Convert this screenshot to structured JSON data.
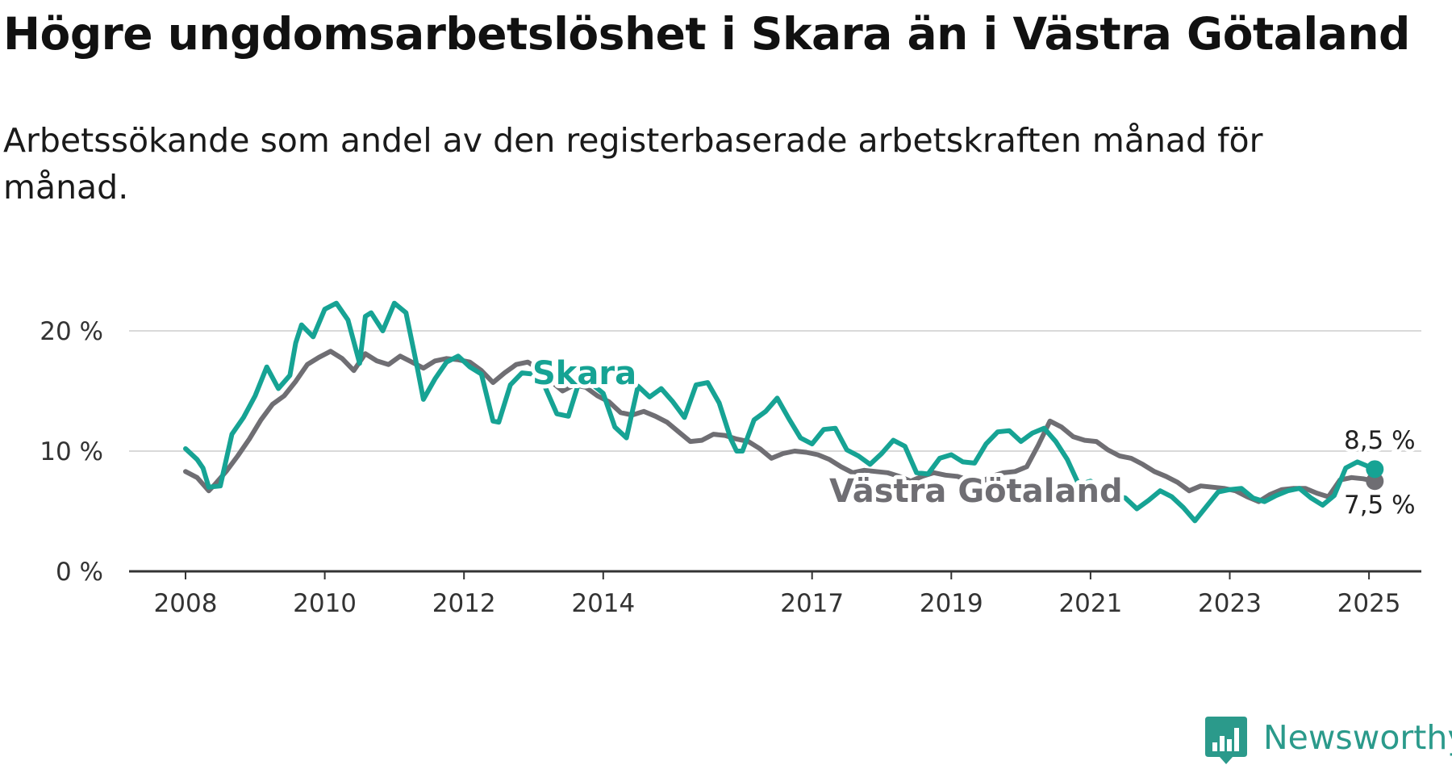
{
  "title": "Högre ungdomsarbetslöshet i Skara än i Västra Götaland",
  "subtitle": "Arbetssökande som andel av den registerbaserade arbetskraften månad för månad.",
  "brand": {
    "name": "Newsworthy",
    "color": "#2b9a8b",
    "icon": "bar-chart-logo-icon"
  },
  "chart_data": {
    "type": "line",
    "y_ticks": [
      "0 %",
      "10 %",
      "20 %"
    ],
    "x_ticks": [
      "2008",
      "2010",
      "2012",
      "2014",
      "2017",
      "2019",
      "2021",
      "2023",
      "2025"
    ],
    "ylim": [
      0,
      25
    ],
    "grid": true,
    "series": [
      {
        "name": "Västra Götaland",
        "color": "#6f6e73",
        "end_label": "7,5 %",
        "points": [
          [
            "2008-01",
            8.3
          ],
          [
            "2008-03",
            7.8
          ],
          [
            "2008-05",
            6.7
          ],
          [
            "2008-06",
            7.2
          ],
          [
            "2008-08",
            8.3
          ],
          [
            "2008-10",
            9.6
          ],
          [
            "2008-12",
            11.0
          ],
          [
            "2009-02",
            12.6
          ],
          [
            "2009-04",
            13.9
          ],
          [
            "2009-06",
            14.6
          ],
          [
            "2009-08",
            15.8
          ],
          [
            "2009-10",
            17.2
          ],
          [
            "2009-12",
            17.8
          ],
          [
            "2010-02",
            18.3
          ],
          [
            "2010-04",
            17.7
          ],
          [
            "2010-06",
            16.7
          ],
          [
            "2010-08",
            18.1
          ],
          [
            "2010-10",
            17.5
          ],
          [
            "2010-12",
            17.2
          ],
          [
            "2011-02",
            17.9
          ],
          [
            "2011-04",
            17.4
          ],
          [
            "2011-06",
            16.9
          ],
          [
            "2011-08",
            17.5
          ],
          [
            "2011-10",
            17.7
          ],
          [
            "2011-12",
            17.6
          ],
          [
            "2012-02",
            17.4
          ],
          [
            "2012-04",
            16.7
          ],
          [
            "2012-06",
            15.7
          ],
          [
            "2012-08",
            16.5
          ],
          [
            "2012-10",
            17.2
          ],
          [
            "2012-12",
            17.4
          ],
          [
            "2013-02",
            16.8
          ],
          [
            "2013-04",
            15.8
          ],
          [
            "2013-06",
            15.0
          ],
          [
            "2013-08",
            15.5
          ],
          [
            "2013-10",
            15.3
          ],
          [
            "2013-12",
            14.6
          ],
          [
            "2014-02",
            14.1
          ],
          [
            "2014-04",
            13.2
          ],
          [
            "2014-06",
            13.0
          ],
          [
            "2014-08",
            13.3
          ],
          [
            "2014-10",
            12.9
          ],
          [
            "2014-12",
            12.4
          ],
          [
            "2015-02",
            11.6
          ],
          [
            "2015-04",
            10.8
          ],
          [
            "2015-06",
            10.9
          ],
          [
            "2015-08",
            11.4
          ],
          [
            "2015-10",
            11.3
          ],
          [
            "2015-12",
            11.0
          ],
          [
            "2016-02",
            10.8
          ],
          [
            "2016-04",
            10.2
          ],
          [
            "2016-06",
            9.4
          ],
          [
            "2016-08",
            9.8
          ],
          [
            "2016-10",
            10.0
          ],
          [
            "2016-12",
            9.9
          ],
          [
            "2017-02",
            9.7
          ],
          [
            "2017-04",
            9.3
          ],
          [
            "2017-06",
            8.7
          ],
          [
            "2017-08",
            8.2
          ],
          [
            "2017-10",
            8.4
          ],
          [
            "2017-12",
            8.3
          ],
          [
            "2018-02",
            8.2
          ],
          [
            "2018-04",
            7.9
          ],
          [
            "2018-06",
            7.5
          ],
          [
            "2018-08",
            7.9
          ],
          [
            "2018-10",
            8.2
          ],
          [
            "2018-12",
            8.0
          ],
          [
            "2019-02",
            7.9
          ],
          [
            "2019-04",
            7.6
          ],
          [
            "2019-06",
            7.4
          ],
          [
            "2019-08",
            7.9
          ],
          [
            "2019-10",
            8.2
          ],
          [
            "2019-12",
            8.3
          ],
          [
            "2020-02",
            8.7
          ],
          [
            "2020-04",
            10.5
          ],
          [
            "2020-06",
            12.5
          ],
          [
            "2020-08",
            12.0
          ],
          [
            "2020-10",
            11.2
          ],
          [
            "2020-12",
            10.9
          ],
          [
            "2021-02",
            10.8
          ],
          [
            "2021-04",
            10.1
          ],
          [
            "2021-06",
            9.6
          ],
          [
            "2021-08",
            9.4
          ],
          [
            "2021-10",
            8.9
          ],
          [
            "2021-12",
            8.3
          ],
          [
            "2022-02",
            7.9
          ],
          [
            "2022-04",
            7.4
          ],
          [
            "2022-06",
            6.7
          ],
          [
            "2022-08",
            7.1
          ],
          [
            "2022-10",
            7.0
          ],
          [
            "2022-12",
            6.9
          ],
          [
            "2023-02",
            6.7
          ],
          [
            "2023-04",
            6.2
          ],
          [
            "2023-06",
            5.8
          ],
          [
            "2023-08",
            6.4
          ],
          [
            "2023-10",
            6.8
          ],
          [
            "2023-12",
            6.9
          ],
          [
            "2024-02",
            6.9
          ],
          [
            "2024-04",
            6.5
          ],
          [
            "2024-06",
            6.2
          ],
          [
            "2024-08",
            7.6
          ],
          [
            "2024-10",
            7.8
          ],
          [
            "2024-12",
            7.7
          ],
          [
            "2025-02",
            7.5
          ]
        ]
      },
      {
        "name": "Skara",
        "color": "#16a394",
        "end_label": "8,5 %",
        "points": [
          [
            "2008-01",
            10.2
          ],
          [
            "2008-03",
            9.3
          ],
          [
            "2008-04",
            8.6
          ],
          [
            "2008-05",
            7.0
          ],
          [
            "2008-07",
            7.1
          ],
          [
            "2008-09",
            11.4
          ],
          [
            "2008-11",
            12.8
          ],
          [
            "2009-01",
            14.6
          ],
          [
            "2009-03",
            17.0
          ],
          [
            "2009-05",
            15.2
          ],
          [
            "2009-07",
            16.3
          ],
          [
            "2009-08",
            19.0
          ],
          [
            "2009-09",
            20.5
          ],
          [
            "2009-11",
            19.5
          ],
          [
            "2010-01",
            21.8
          ],
          [
            "2010-03",
            22.3
          ],
          [
            "2010-05",
            20.9
          ],
          [
            "2010-07",
            17.3
          ],
          [
            "2010-08",
            21.2
          ],
          [
            "2010-09",
            21.5
          ],
          [
            "2010-11",
            20.0
          ],
          [
            "2011-01",
            22.3
          ],
          [
            "2011-03",
            21.5
          ],
          [
            "2011-05",
            16.8
          ],
          [
            "2011-06",
            14.3
          ],
          [
            "2011-08",
            16.0
          ],
          [
            "2011-10",
            17.4
          ],
          [
            "2011-12",
            17.9
          ],
          [
            "2012-02",
            17.0
          ],
          [
            "2012-04",
            16.4
          ],
          [
            "2012-06",
            12.5
          ],
          [
            "2012-07",
            12.4
          ],
          [
            "2012-09",
            15.5
          ],
          [
            "2012-11",
            16.5
          ],
          [
            "2013-01",
            16.4
          ],
          [
            "2013-03",
            15.3
          ],
          [
            "2013-05",
            13.1
          ],
          [
            "2013-07",
            12.9
          ],
          [
            "2013-09",
            16.0
          ],
          [
            "2013-11",
            15.6
          ],
          [
            "2014-01",
            14.8
          ],
          [
            "2014-03",
            12.0
          ],
          [
            "2014-05",
            11.1
          ],
          [
            "2014-07",
            15.4
          ],
          [
            "2014-09",
            14.5
          ],
          [
            "2014-11",
            15.2
          ],
          [
            "2015-01",
            14.1
          ],
          [
            "2015-03",
            12.8
          ],
          [
            "2015-05",
            15.5
          ],
          [
            "2015-07",
            15.7
          ],
          [
            "2015-09",
            14.0
          ],
          [
            "2015-11",
            11.0
          ],
          [
            "2015-12",
            10.0
          ],
          [
            "2016-01",
            10.0
          ],
          [
            "2016-03",
            12.6
          ],
          [
            "2016-05",
            13.3
          ],
          [
            "2016-07",
            14.4
          ],
          [
            "2016-09",
            12.7
          ],
          [
            "2016-11",
            11.1
          ],
          [
            "2017-01",
            10.6
          ],
          [
            "2017-03",
            11.8
          ],
          [
            "2017-05",
            11.9
          ],
          [
            "2017-07",
            10.1
          ],
          [
            "2017-09",
            9.6
          ],
          [
            "2017-11",
            8.9
          ],
          [
            "2018-01",
            9.8
          ],
          [
            "2018-03",
            10.9
          ],
          [
            "2018-05",
            10.4
          ],
          [
            "2018-07",
            8.2
          ],
          [
            "2018-09",
            8.1
          ],
          [
            "2018-11",
            9.4
          ],
          [
            "2019-01",
            9.7
          ],
          [
            "2019-03",
            9.1
          ],
          [
            "2019-05",
            9.0
          ],
          [
            "2019-07",
            10.6
          ],
          [
            "2019-09",
            11.6
          ],
          [
            "2019-11",
            11.7
          ],
          [
            "2020-01",
            10.8
          ],
          [
            "2020-03",
            11.5
          ],
          [
            "2020-05",
            11.9
          ],
          [
            "2020-07",
            10.8
          ],
          [
            "2020-09",
            9.3
          ],
          [
            "2020-11",
            7.2
          ],
          [
            "2021-01",
            7.5
          ],
          [
            "2021-03",
            6.8
          ],
          [
            "2021-05",
            6.3
          ],
          [
            "2021-07",
            6.1
          ],
          [
            "2021-09",
            5.2
          ],
          [
            "2021-11",
            5.9
          ],
          [
            "2022-01",
            6.7
          ],
          [
            "2022-03",
            6.2
          ],
          [
            "2022-05",
            5.3
          ],
          [
            "2022-07",
            4.2
          ],
          [
            "2022-09",
            5.4
          ],
          [
            "2022-11",
            6.6
          ],
          [
            "2023-01",
            6.8
          ],
          [
            "2023-03",
            6.9
          ],
          [
            "2023-05",
            6.1
          ],
          [
            "2023-07",
            5.8
          ],
          [
            "2023-09",
            6.3
          ],
          [
            "2023-11",
            6.7
          ],
          [
            "2024-01",
            6.9
          ],
          [
            "2024-03",
            6.1
          ],
          [
            "2024-05",
            5.5
          ],
          [
            "2024-07",
            6.3
          ],
          [
            "2024-09",
            8.6
          ],
          [
            "2024-11",
            9.1
          ],
          [
            "2025-02",
            8.5
          ]
        ]
      }
    ]
  }
}
